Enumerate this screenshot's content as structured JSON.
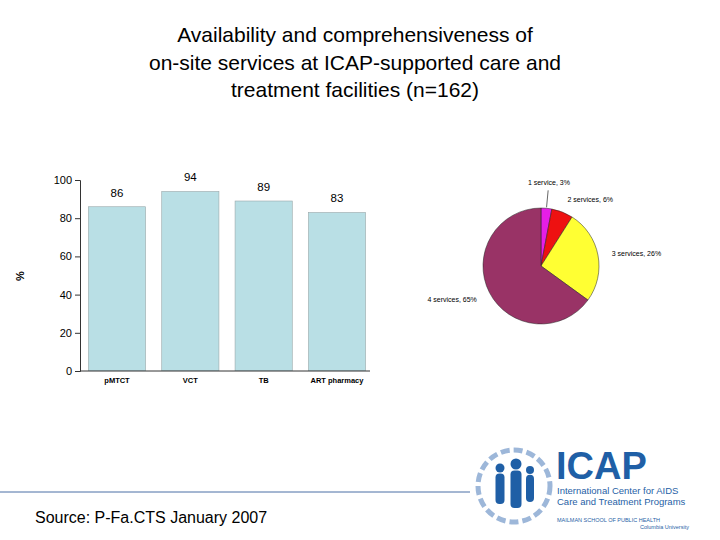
{
  "title": "Availability and comprehensiveness of\non-site services at ICAP-supported care and\ntreatment facilities (n=162)",
  "source": "Source: P-Fa.CTS January 2007",
  "logo": {
    "name": "ICAP",
    "lines": [
      "International Center for AIDS",
      "Care and Treatment Programs"
    ],
    "school": "MAILMAN SCHOOL OF PUBLIC HEALTH",
    "university": "Columbia University"
  },
  "chart_data": [
    {
      "type": "bar",
      "y_label": "%",
      "categories": [
        "pMTCT",
        "VCT",
        "TB",
        "ART pharmacy"
      ],
      "values": [
        86,
        94,
        89,
        83
      ],
      "color": "#b9dfe5",
      "ylim": [
        0,
        100
      ],
      "yticks": [
        0,
        20,
        40,
        60,
        80,
        100
      ],
      "data_labels": true
    },
    {
      "type": "pie",
      "values": [
        3,
        6,
        26,
        65
      ],
      "value_labels": [
        "1 service, 3%",
        "2 services, 6%",
        "3 services, 26%",
        "4 services, 65%"
      ],
      "colors": [
        "#e61ee6",
        "#ee1111",
        "#ffff33",
        "#993366"
      ],
      "data_labels": true
    }
  ]
}
